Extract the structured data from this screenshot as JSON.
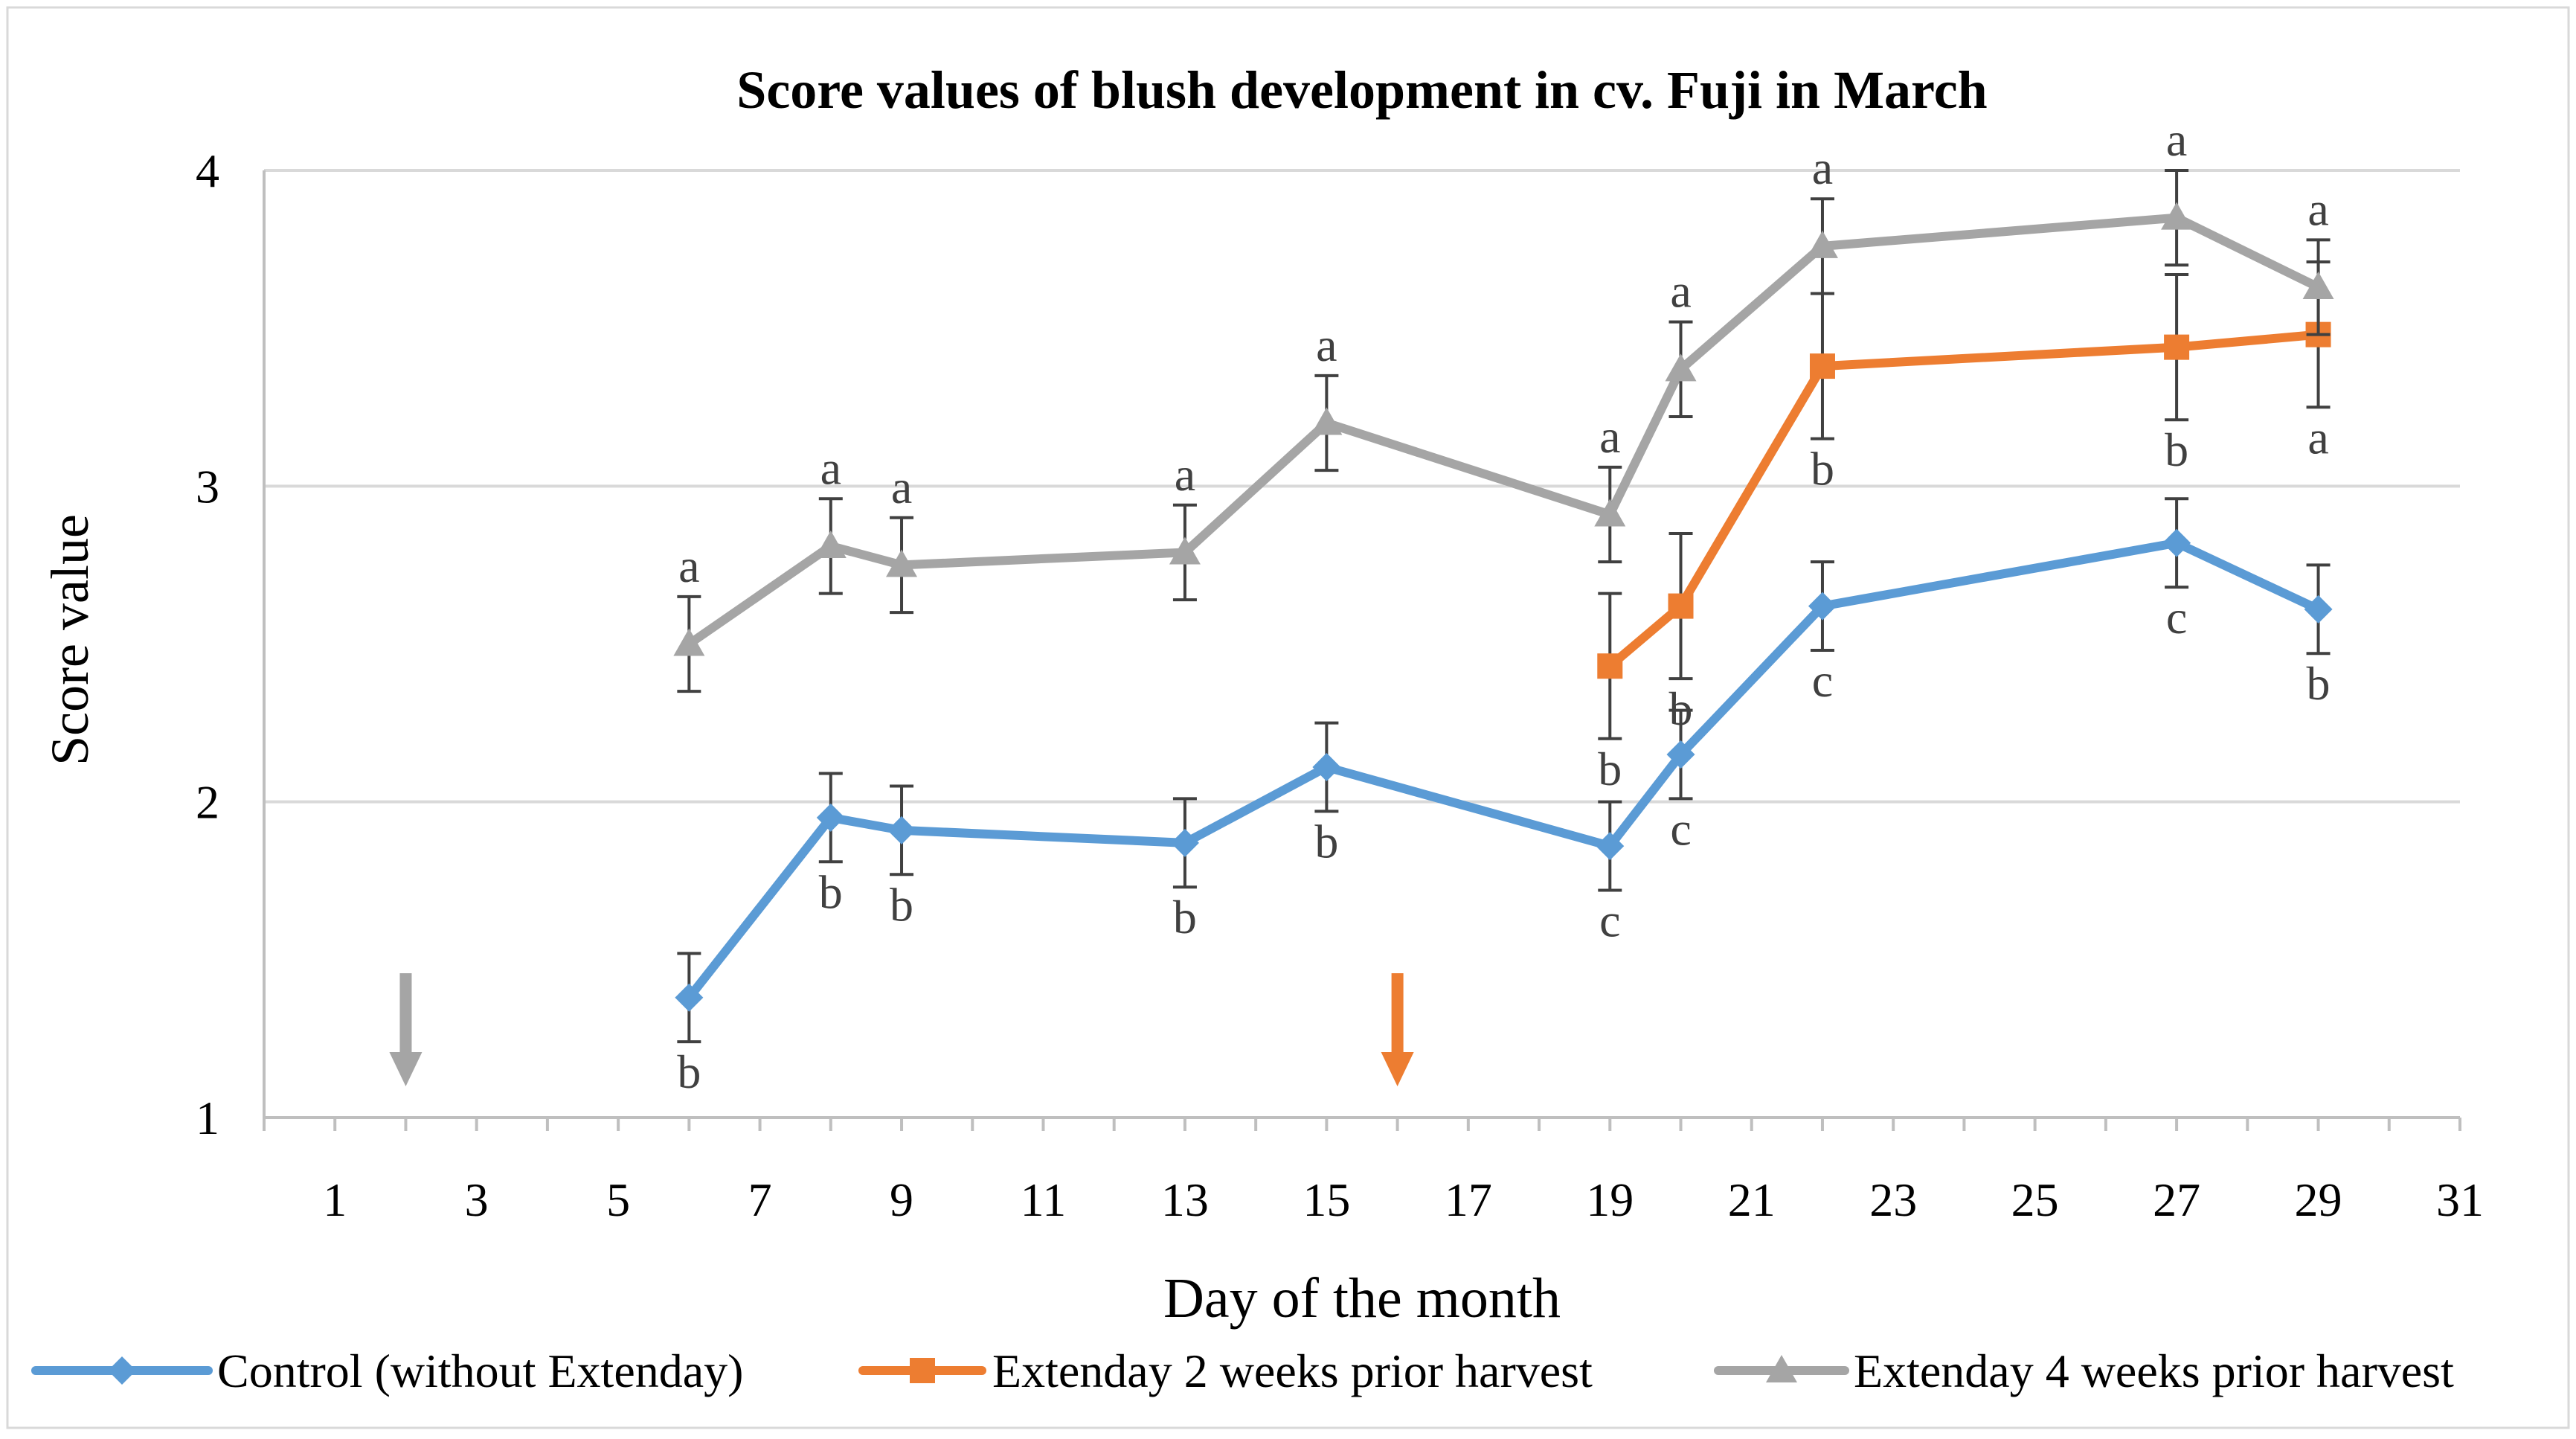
{
  "chart_data": {
    "type": "line",
    "title": "Score values of blush development in cv. Fuji in March",
    "xlabel": "Day of the month",
    "ylabel": "Score value",
    "xlim": [
      0,
      31
    ],
    "ylim": [
      1,
      4
    ],
    "xticks": [
      "1",
      "3",
      "5",
      "7",
      "9",
      "11",
      "13",
      "15",
      "17",
      "19",
      "21",
      "23",
      "25",
      "27",
      "29",
      "31"
    ],
    "yticks": [
      "1",
      "2",
      "3",
      "4"
    ],
    "grid": true,
    "legend_position": "bottom",
    "series": [
      {
        "name": "Control (without Extenday)",
        "color": "#5b9bd5",
        "marker": "diamond",
        "x": [
          6,
          8,
          9,
          13,
          15,
          19,
          20,
          22,
          27,
          29
        ],
        "y": [
          1.38,
          1.95,
          1.91,
          1.87,
          2.11,
          1.86,
          2.15,
          2.62,
          2.82,
          2.61
        ],
        "err": [
          0.14,
          0.14,
          0.14,
          0.14,
          0.14,
          0.14,
          0.14,
          0.14,
          0.14,
          0.14
        ],
        "labels": [
          "b",
          "b",
          "b",
          "b",
          "b",
          "c",
          "c",
          "c",
          "c",
          "b"
        ]
      },
      {
        "name": "Extenday 2 weeks prior harvest",
        "color": "#ed7d31",
        "marker": "square",
        "x": [
          19,
          20,
          22,
          27,
          29
        ],
        "y": [
          2.43,
          2.62,
          3.38,
          3.44,
          3.48
        ],
        "err": [
          0.23,
          0.23,
          0.23,
          0.23,
          0.23
        ],
        "labels": [
          "b",
          "b",
          "b",
          "b",
          "a"
        ]
      },
      {
        "name": "Extenday 4 weeks prior harvest",
        "color": "#a5a5a5",
        "marker": "triangle",
        "x": [
          6,
          8,
          9,
          13,
          15,
          19,
          20,
          22,
          27,
          29
        ],
        "y": [
          2.5,
          2.81,
          2.75,
          2.79,
          3.2,
          2.91,
          3.37,
          3.76,
          3.85,
          3.63
        ],
        "err": [
          0.15,
          0.15,
          0.15,
          0.15,
          0.15,
          0.15,
          0.15,
          0.15,
          0.15,
          0.15
        ],
        "labels": [
          "a",
          "a",
          "a",
          "a",
          "a",
          "a",
          "a",
          "a",
          "a",
          "a"
        ]
      }
    ],
    "annotations": [
      {
        "type": "arrow",
        "x": 2,
        "color": "#a5a5a5",
        "meaning": "Extenday 4 weeks prior harvest application"
      },
      {
        "type": "arrow",
        "x": 16,
        "color": "#ed7d31",
        "meaning": "Extenday 2 weeks prior harvest application"
      }
    ]
  }
}
